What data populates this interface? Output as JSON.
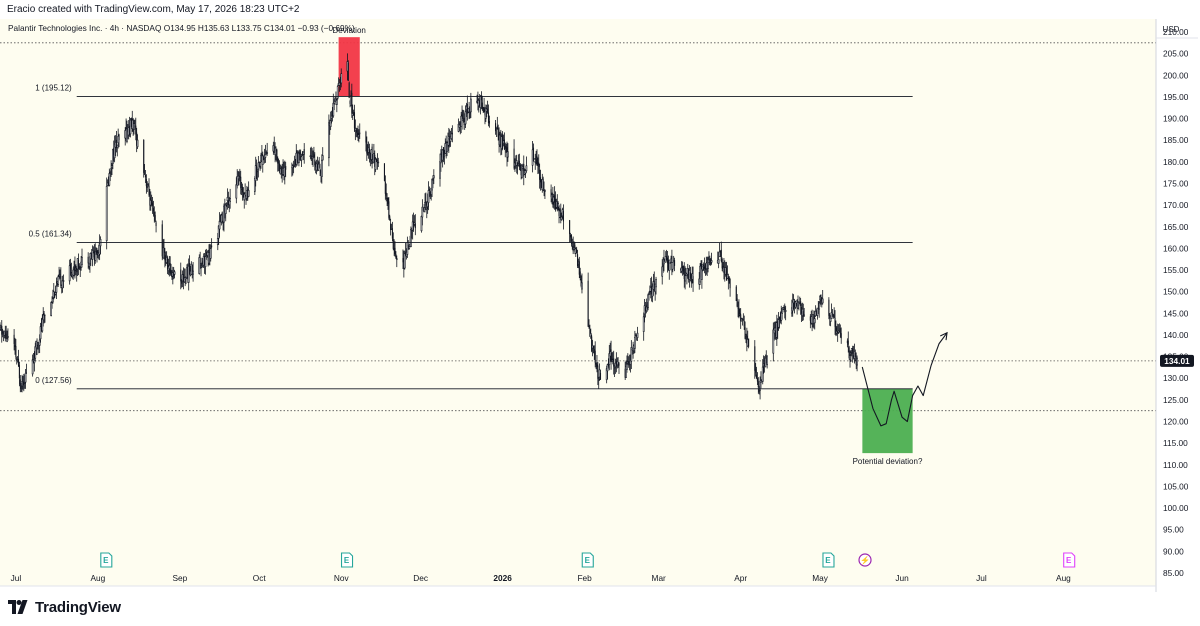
{
  "header": {
    "caption": "Eracio created with TradingView.com, May 17, 2026 18:23 UTC+2"
  },
  "footer": {
    "brand": "TradingView"
  },
  "colors": {
    "chart_bg": "#fefdf0",
    "candle": "#131722",
    "axis_text": "#131722",
    "price_label_bg": "#131722",
    "price_label_text": "#ffffff",
    "deviation_box": "#f23645",
    "potential_box": "#4caf50",
    "event_icon": "#26a69a",
    "split_icon": "#9c27b0",
    "future_icon": "#e040fb"
  },
  "chart_data": {
    "type": "candlestick",
    "title": "Palantir Technologies Inc. · 4h · NASDAQ",
    "ohlc_label": {
      "o_label": "O",
      "o": "134.95",
      "h_label": "H",
      "h": "135.63",
      "l_label": "L",
      "l": "133.75",
      "c_label": "C",
      "c": "134.01",
      "change": "−0.93 (−0.69%)"
    },
    "currency": "USD",
    "y_range": [
      82,
      213
    ],
    "y_ticks": [
      "210.00",
      "205.00",
      "200.00",
      "195.00",
      "190.00",
      "185.00",
      "180.00",
      "175.00",
      "170.00",
      "165.00",
      "160.00",
      "155.00",
      "150.00",
      "145.00",
      "140.00",
      "135.00",
      "130.00",
      "125.00",
      "120.00",
      "115.00",
      "110.00",
      "105.00",
      "100.00",
      "95.00",
      "90.00",
      "85.00"
    ],
    "x_range": [
      "2025-06-25",
      "2026-09-05"
    ],
    "x_ticks": [
      {
        "label": "Jul",
        "date": "2025-07-01"
      },
      {
        "label": "Aug",
        "date": "2025-08-01"
      },
      {
        "label": "Sep",
        "date": "2025-09-01"
      },
      {
        "label": "Oct",
        "date": "2025-10-01"
      },
      {
        "label": "Nov",
        "date": "2025-11-01"
      },
      {
        "label": "Dec",
        "date": "2025-12-01"
      },
      {
        "label": "2026",
        "date": "2026-01-01"
      },
      {
        "label": "Feb",
        "date": "2026-02-01"
      },
      {
        "label": "Mar",
        "date": "2026-03-01"
      },
      {
        "label": "Apr",
        "date": "2026-04-01"
      },
      {
        "label": "May",
        "date": "2026-05-01"
      },
      {
        "label": "Jun",
        "date": "2026-06-01"
      },
      {
        "label": "Jul",
        "date": "2026-07-01"
      },
      {
        "label": "Aug",
        "date": "2026-08-01"
      }
    ],
    "last_price": "134.01",
    "price_path": [
      [
        "2025-06-25",
        141
      ],
      [
        "2025-06-30",
        138
      ],
      [
        "2025-07-03",
        129
      ],
      [
        "2025-07-07",
        133
      ],
      [
        "2025-07-12",
        145
      ],
      [
        "2025-07-17",
        152
      ],
      [
        "2025-07-22",
        155
      ],
      [
        "2025-07-28",
        158
      ],
      [
        "2025-08-01",
        159
      ],
      [
        "2025-08-04",
        172
      ],
      [
        "2025-08-07",
        183
      ],
      [
        "2025-08-12",
        187
      ],
      [
        "2025-08-14",
        189
      ],
      [
        "2025-08-18",
        180
      ],
      [
        "2025-08-21",
        170
      ],
      [
        "2025-08-25",
        160
      ],
      [
        "2025-08-28",
        155
      ],
      [
        "2025-09-02",
        153
      ],
      [
        "2025-09-08",
        157
      ],
      [
        "2025-09-12",
        158
      ],
      [
        "2025-09-16",
        165
      ],
      [
        "2025-09-19",
        171
      ],
      [
        "2025-09-23",
        176
      ],
      [
        "2025-09-26",
        172
      ],
      [
        "2025-10-01",
        180
      ],
      [
        "2025-10-06",
        184
      ],
      [
        "2025-10-10",
        177
      ],
      [
        "2025-10-15",
        181
      ],
      [
        "2025-10-20",
        183
      ],
      [
        "2025-10-24",
        177
      ],
      [
        "2025-10-28",
        190
      ],
      [
        "2025-10-31",
        197
      ],
      [
        "2025-11-03",
        206
      ],
      [
        "2025-11-04",
        196
      ],
      [
        "2025-11-07",
        186
      ],
      [
        "2025-11-12",
        182
      ],
      [
        "2025-11-17",
        176
      ],
      [
        "2025-11-21",
        160
      ],
      [
        "2025-11-24",
        155
      ],
      [
        "2025-11-28",
        165
      ],
      [
        "2025-12-03",
        170
      ],
      [
        "2025-12-08",
        180
      ],
      [
        "2025-12-12",
        185
      ],
      [
        "2025-12-17",
        190
      ],
      [
        "2025-12-22",
        195
      ],
      [
        "2025-12-24",
        194
      ],
      [
        "2025-12-29",
        187
      ],
      [
        "2026-01-05",
        180
      ],
      [
        "2026-01-09",
        178
      ],
      [
        "2026-01-13",
        182
      ],
      [
        "2026-01-16",
        175
      ],
      [
        "2026-01-21",
        170
      ],
      [
        "2026-01-26",
        165
      ],
      [
        "2026-01-30",
        155
      ],
      [
        "2026-02-03",
        140
      ],
      [
        "2026-02-06",
        130
      ],
      [
        "2026-02-11",
        135
      ],
      [
        "2026-02-16",
        131
      ],
      [
        "2026-02-20",
        138
      ],
      [
        "2026-02-26",
        150
      ],
      [
        "2026-03-03",
        157
      ],
      [
        "2026-03-09",
        155
      ],
      [
        "2026-03-14",
        153
      ],
      [
        "2026-03-19",
        156
      ],
      [
        "2026-03-24",
        158
      ],
      [
        "2026-03-29",
        150
      ],
      [
        "2026-04-03",
        140
      ],
      [
        "2026-04-08",
        128
      ],
      [
        "2026-04-12",
        138
      ],
      [
        "2026-04-17",
        145
      ],
      [
        "2026-04-22",
        147
      ],
      [
        "2026-04-28",
        143
      ],
      [
        "2026-05-01",
        148
      ],
      [
        "2026-05-05",
        145
      ],
      [
        "2026-05-08",
        140
      ],
      [
        "2026-05-12",
        136
      ],
      [
        "2026-05-15",
        134
      ]
    ],
    "levels": [
      {
        "label": "1 (195.12)",
        "price": 195.12,
        "from": "2025-07-24",
        "to": "2026-06-05"
      },
      {
        "label": "0.5 (161.34)",
        "price": 161.34,
        "from": "2025-07-24",
        "to": "2026-06-05"
      },
      {
        "label": "0 (127.56)",
        "price": 127.56,
        "from": "2025-07-24",
        "to": "2026-06-05"
      }
    ],
    "dotted_lines": [
      207.5,
      134.01,
      122.5
    ],
    "deviation_box": {
      "label": "Deviation",
      "from": "2025-10-31",
      "to": "2025-11-08",
      "high": 208.8,
      "low": 195.12
    },
    "potential_box": {
      "label": "Potential deviation?",
      "from": "2026-05-17",
      "to": "2026-06-05",
      "high": 127.56,
      "low": 112.7
    },
    "projection": [
      [
        "2026-05-17",
        132.5
      ],
      [
        "2026-05-21",
        123
      ],
      [
        "2026-05-24",
        119
      ],
      [
        "2026-05-26",
        119.5
      ],
      [
        "2026-05-28",
        125
      ],
      [
        "2026-05-29",
        127
      ],
      [
        "2026-06-01",
        121
      ],
      [
        "2026-06-03",
        120
      ],
      [
        "2026-06-05",
        126
      ],
      [
        "2026-06-07",
        128.2
      ],
      [
        "2026-06-09",
        126
      ],
      [
        "2026-06-12",
        133
      ],
      [
        "2026-06-15",
        138
      ],
      [
        "2026-06-18",
        140.5
      ]
    ],
    "events": [
      {
        "symbol": "E",
        "date": "2025-08-04",
        "kind": "earnings"
      },
      {
        "symbol": "E",
        "date": "2025-11-03",
        "kind": "earnings"
      },
      {
        "symbol": "E",
        "date": "2026-02-02",
        "kind": "earnings"
      },
      {
        "symbol": "E",
        "date": "2026-05-04",
        "kind": "earnings"
      },
      {
        "symbol": "⚡",
        "date": "2026-05-18",
        "kind": "split"
      },
      {
        "symbol": "E",
        "date": "2026-08-03",
        "kind": "future-earnings"
      }
    ]
  }
}
